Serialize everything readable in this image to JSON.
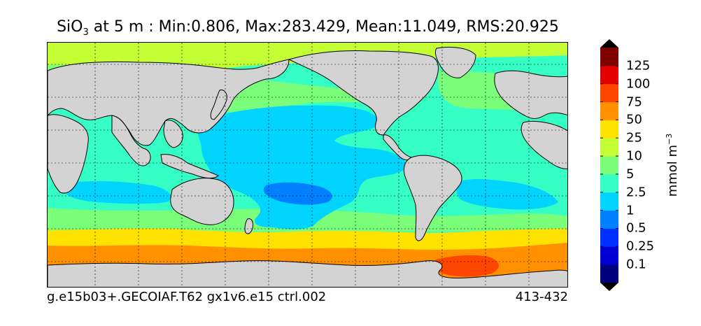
{
  "title": {
    "species": "SiO",
    "subscript": "3",
    "rest": " at 5 m : Min:0.806, Max:283.429, Mean:11.049, RMS:20.925"
  },
  "footer": {
    "case": "g.e15b03+.GECOIAF.T62 gx1v6.e15 ctrl.002",
    "years": "413-432"
  },
  "colorbar": {
    "unit_base": "mmol m",
    "unit_exp": "−3",
    "levels": [
      "0.1",
      "0.25",
      "0.5",
      "1",
      "2.5",
      "5",
      "10",
      "25",
      "50",
      "75",
      "100",
      "125"
    ],
    "colors": [
      "#00007f",
      "#0000d4",
      "#0030ff",
      "#0080ff",
      "#00d4ff",
      "#35ffc4",
      "#7bff7b",
      "#c4ff35",
      "#ffe200",
      "#ff9100",
      "#ff4600",
      "#e30000",
      "#7f0000"
    ]
  },
  "map": {
    "land_color": "#d3d3d3",
    "ocean_colors": {
      "open_pacific": "#00d4ff",
      "subtropical_gyre_core": "#0080ff",
      "mid_latitudes": "#35ffc4",
      "subpolar": "#7bff7b",
      "north_pacific_arctic": "#c4ff35",
      "southern_ocean_band": "#ffe200",
      "antarctic_shelf": "#ff9100",
      "weddell_hotspot": "#ff4600"
    }
  }
}
